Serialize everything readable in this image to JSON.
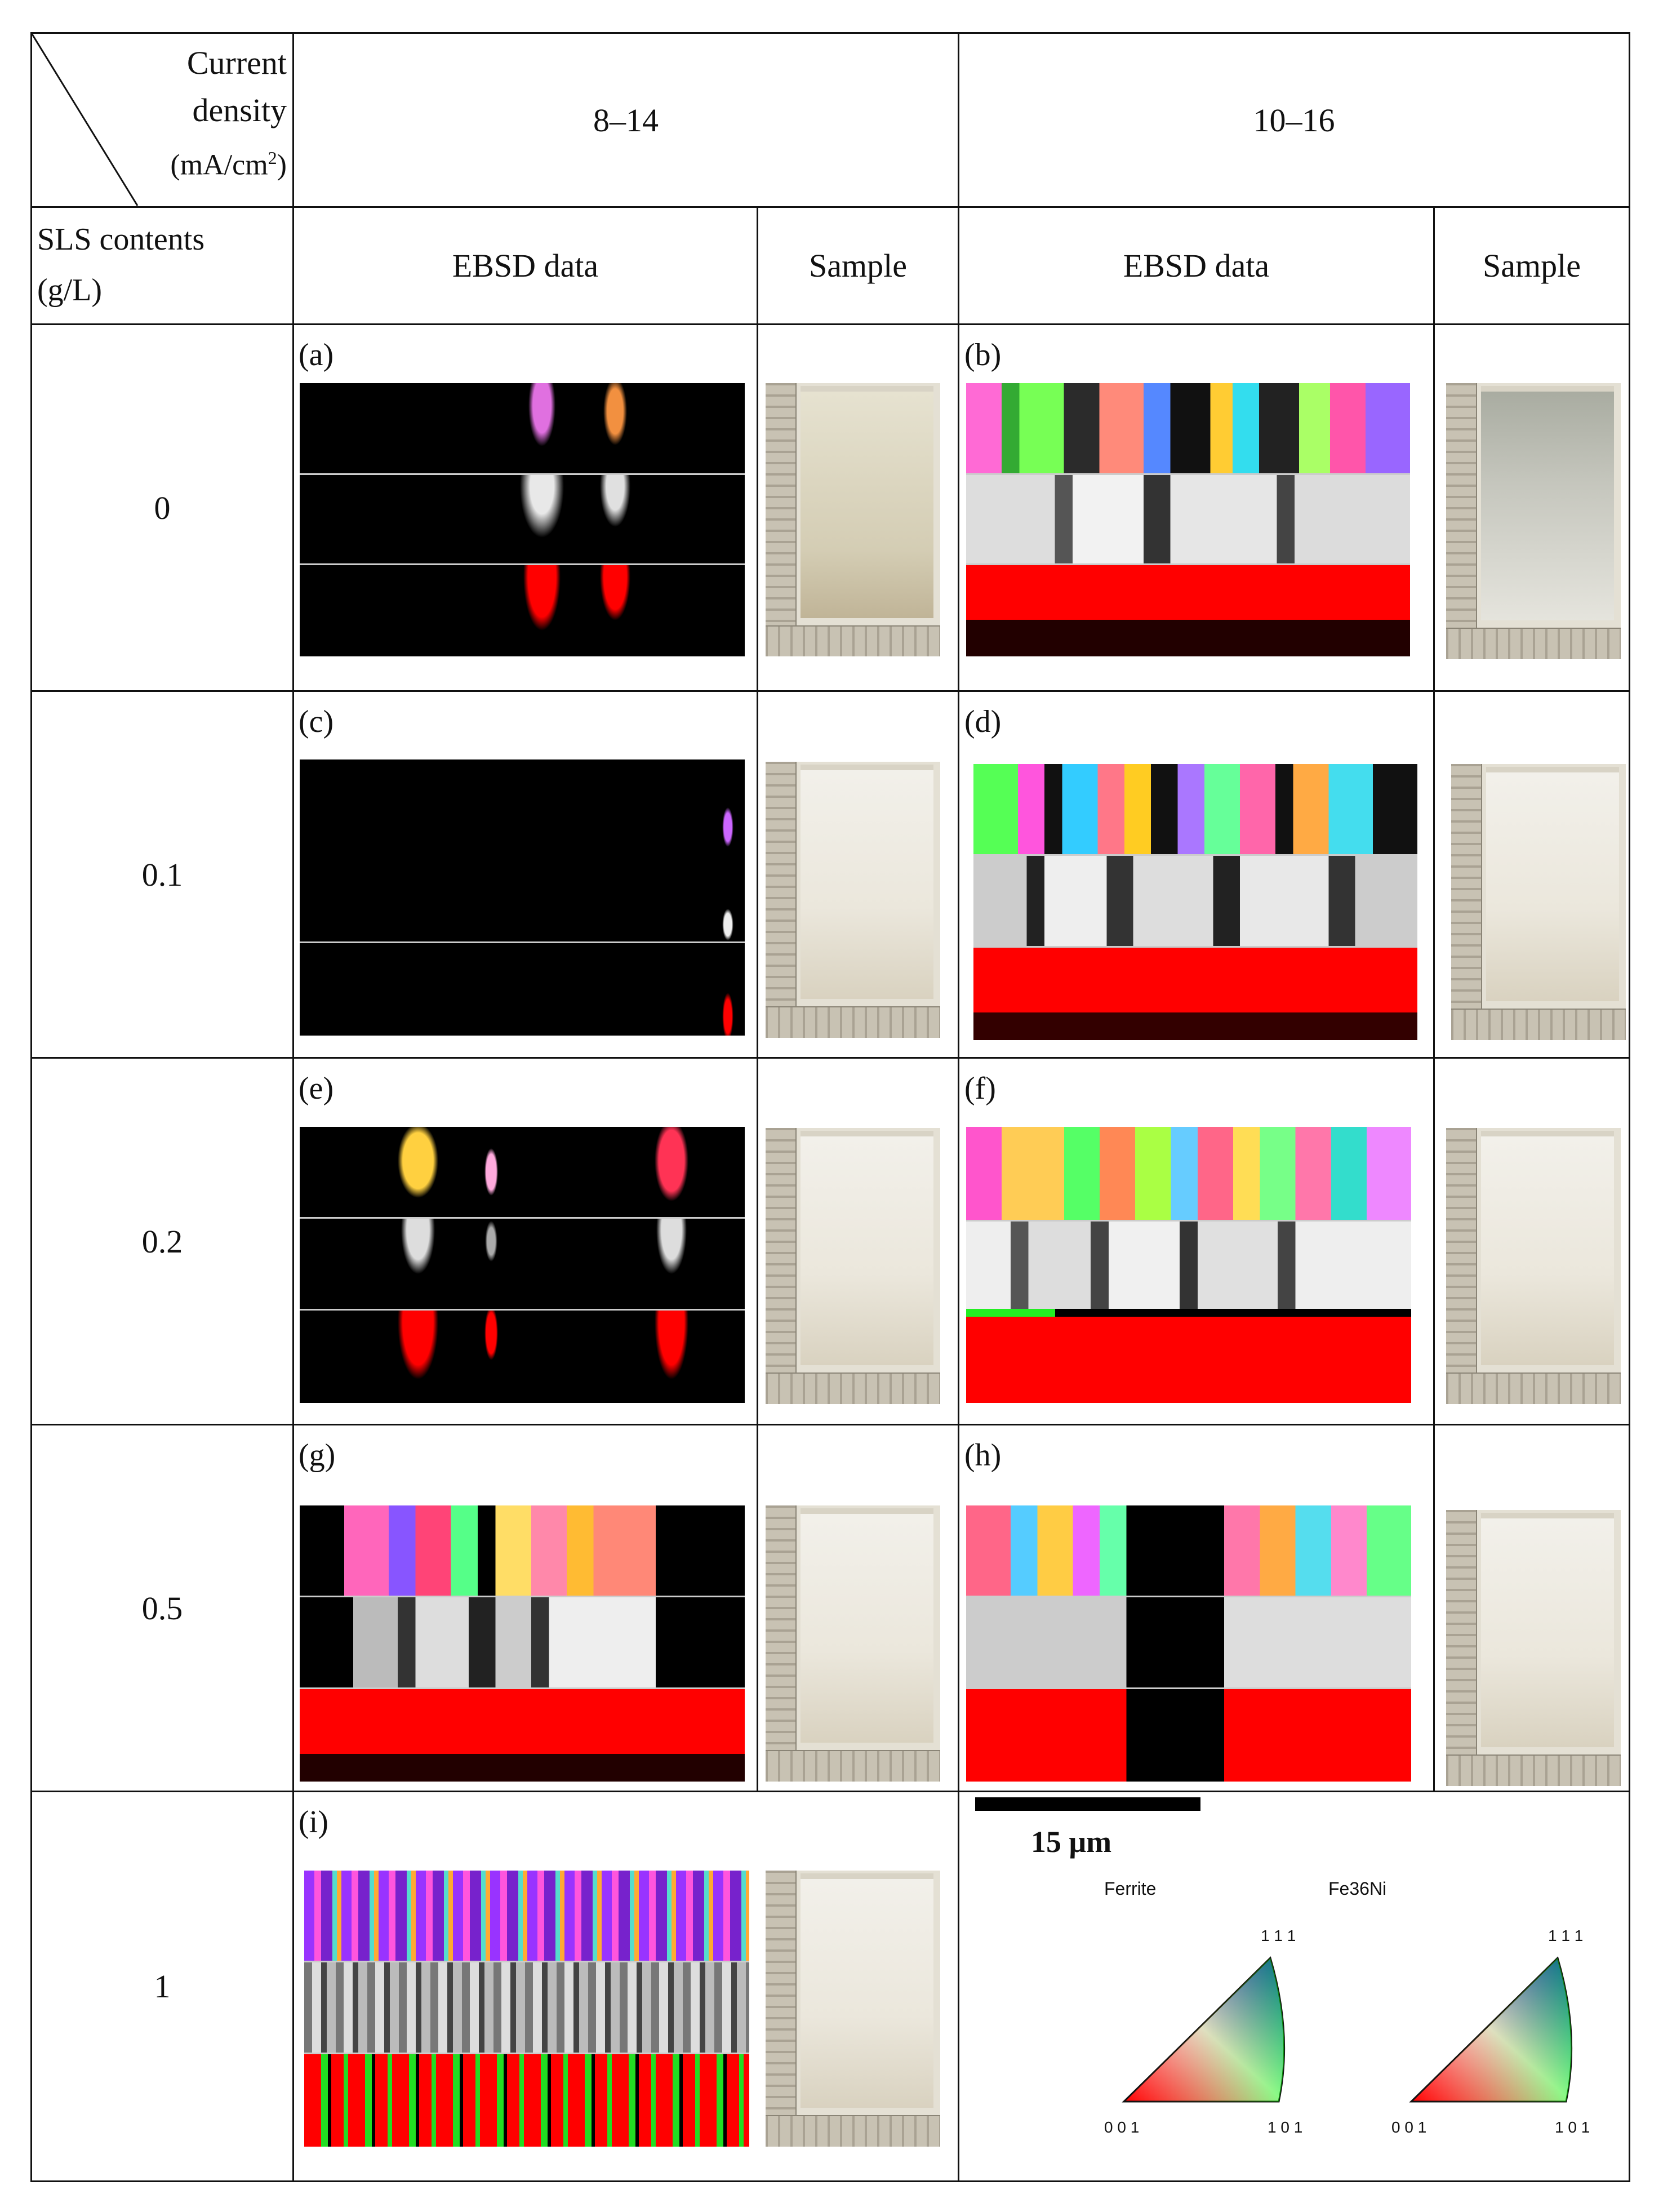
{
  "header": {
    "corner_current": "Current",
    "corner_density": "density",
    "corner_units_main": "(mA/cm",
    "corner_units_sup": "2",
    "corner_units_close": ")",
    "sls_line1": "SLS contents",
    "sls_line2": "(g/L)",
    "group1": "8–14",
    "group2": "10–16",
    "ebsd1": "EBSD data",
    "sample1": "Sample",
    "ebsd2": "EBSD data",
    "sample2": "Sample"
  },
  "rows": [
    {
      "sls": "0",
      "label_left": "(a)",
      "label_right": "(b)"
    },
    {
      "sls": "0.1",
      "label_left": "(c)",
      "label_right": "(d)"
    },
    {
      "sls": "0.2",
      "label_left": "(e)",
      "label_right": "(f)"
    },
    {
      "sls": "0.5",
      "label_left": "(g)",
      "label_right": "(h)"
    },
    {
      "sls": "1",
      "label_left": "(i)"
    }
  ],
  "legend": {
    "scale_label": "15 μm",
    "ferrite": "Ferrite",
    "fe36ni": "Fe36Ni",
    "ipf_top": "1 1 1",
    "ipf_left": "0 0 1",
    "ipf_right": "1 0 1"
  },
  "colors": {
    "phase_red": "#ff0000",
    "phase_green": "#22dd22",
    "background": "#000000"
  }
}
